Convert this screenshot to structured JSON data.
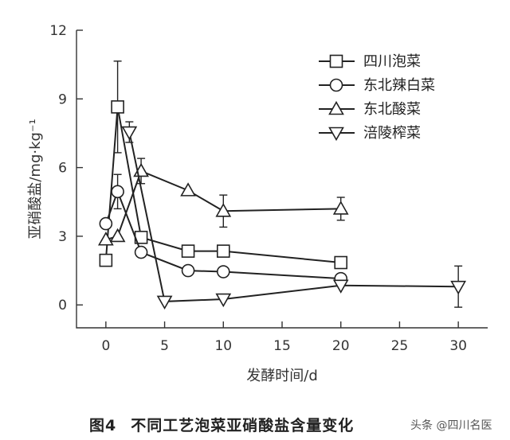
{
  "chart_data": {
    "type": "line",
    "title": "",
    "xlabel": "发酵时间/d",
    "ylabel": "亚硝酸盐/mg·kg⁻¹",
    "xlim": [
      -2.5,
      32.5
    ],
    "ylim": [
      -1,
      12
    ],
    "xticks": [
      0,
      5,
      10,
      15,
      20,
      25,
      30
    ],
    "yticks": [
      0,
      3,
      6,
      9,
      12
    ],
    "grid": false,
    "legend_position": "top-right",
    "series": [
      {
        "name": "四川泡菜",
        "marker": "square",
        "x": [
          0,
          1,
          3,
          7,
          10,
          20
        ],
        "y": [
          1.95,
          8.65,
          2.95,
          2.35,
          2.35,
          1.85
        ],
        "err": [
          0,
          2.0,
          0.2,
          0.15,
          0.25,
          0.2
        ]
      },
      {
        "name": "东北辣白菜",
        "marker": "circle",
        "x": [
          0,
          1,
          3,
          7,
          10,
          20
        ],
        "y": [
          3.55,
          4.95,
          2.3,
          1.5,
          1.45,
          1.15
        ],
        "err": [
          0,
          0.75,
          0.1,
          0.1,
          0.15,
          0.1
        ]
      },
      {
        "name": "东北酸菜",
        "marker": "triangle-up",
        "x": [
          0,
          1,
          3,
          7,
          10,
          20
        ],
        "y": [
          2.85,
          3.0,
          5.85,
          5.0,
          4.1,
          4.2
        ],
        "err": [
          0,
          0,
          0.55,
          0,
          0.7,
          0.5
        ]
      },
      {
        "name": "涪陵榨菜",
        "marker": "triangle-down",
        "x": [
          2,
          5,
          10,
          20,
          30
        ],
        "y": [
          7.55,
          0.15,
          0.25,
          0.85,
          0.8
        ],
        "err": [
          0.45,
          0,
          0,
          0,
          0.9
        ]
      }
    ]
  },
  "caption": {
    "figure_number": "图4",
    "title": "不同工艺泡菜亚硝酸盐含量变化"
  },
  "watermark": "头条 @四川名医"
}
